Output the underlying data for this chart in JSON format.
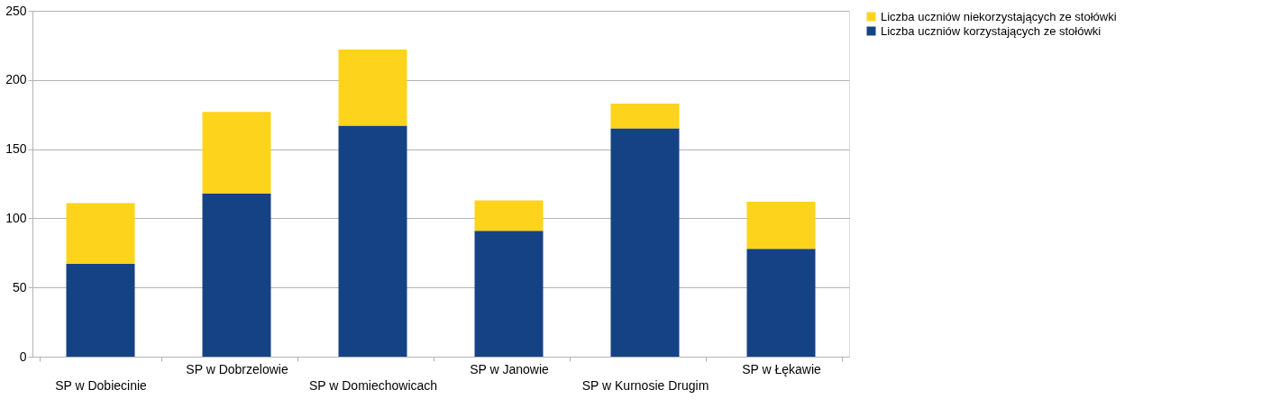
{
  "chart_data": {
    "type": "bar",
    "stacked": true,
    "categories": [
      "SP w Dobiecinie",
      "SP w Dobrzelowie",
      "SP w Domiechowicach",
      "SP w Janowie",
      "SP w Kurnosie Drugim",
      "SP w Łękawie"
    ],
    "series": [
      {
        "name": "Liczba uczniów korzystających ze stołówki",
        "color": "#154284",
        "values": [
          67,
          118,
          167,
          91,
          165,
          78
        ]
      },
      {
        "name": "Liczba uczniów niekorzystających ze stołówki",
        "color": "#fdd31c",
        "values": [
          44,
          59,
          55,
          22,
          18,
          34
        ]
      }
    ],
    "ylim": [
      0,
      250
    ],
    "yticks": [
      0,
      50,
      100,
      150,
      200,
      250
    ],
    "grid": "y",
    "legend": "right"
  }
}
